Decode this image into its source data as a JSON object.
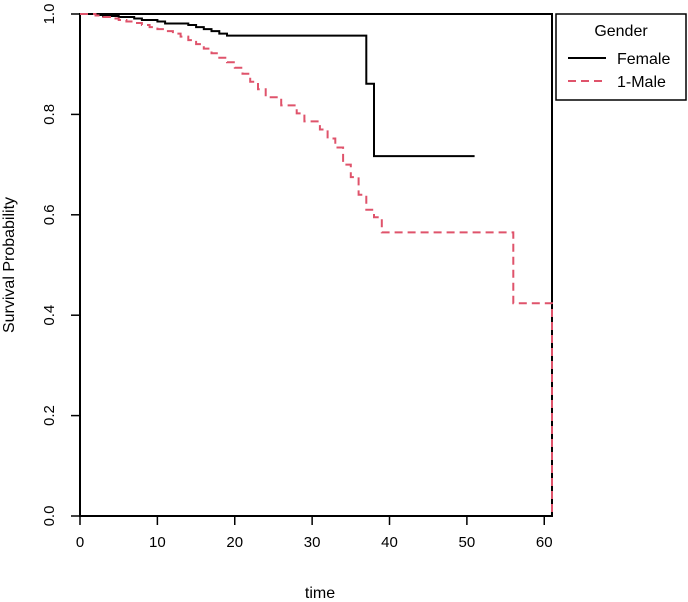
{
  "chart_data": {
    "type": "line",
    "subtype": "kaplan-meier step",
    "title": "",
    "xlabel": "time",
    "ylabel": "Survival Probability",
    "xlim": [
      0,
      61
    ],
    "ylim": [
      0,
      1
    ],
    "x_ticks": [
      "0",
      "10",
      "20",
      "30",
      "40",
      "50",
      "60"
    ],
    "y_ticks": [
      "0.0",
      "0.2",
      "0.4",
      "0.6",
      "0.8",
      "1.0"
    ],
    "grid": false,
    "legend": {
      "title": "Gender",
      "placement": "top-right outside",
      "entries": [
        "Female",
        "1-Male"
      ]
    },
    "series": [
      {
        "name": "Female",
        "color": "#000000",
        "style": "solid",
        "x": [
          0,
          2,
          3,
          5,
          7,
          8,
          10,
          11,
          14,
          15,
          16,
          17,
          18,
          19,
          37,
          38,
          51
        ],
        "y": [
          1.0,
          0.998,
          0.996,
          0.994,
          0.991,
          0.988,
          0.985,
          0.981,
          0.978,
          0.974,
          0.97,
          0.966,
          0.961,
          0.957,
          0.861,
          0.717,
          0.717
        ]
      },
      {
        "name": "1-Male",
        "color": "#DF536B",
        "style": "dashed",
        "x": [
          0,
          2,
          3,
          4,
          5,
          6,
          7,
          8,
          9,
          10,
          11,
          12,
          13,
          14,
          15,
          16,
          17,
          18,
          19,
          20,
          21,
          22,
          23,
          24,
          26,
          28,
          29,
          31,
          32,
          33,
          34,
          35,
          36,
          37,
          38,
          39,
          56,
          61
        ],
        "y": [
          1.0,
          0.997,
          0.994,
          0.991,
          0.988,
          0.985,
          0.982,
          0.978,
          0.974,
          0.97,
          0.966,
          0.961,
          0.955,
          0.948,
          0.94,
          0.931,
          0.922,
          0.913,
          0.904,
          0.893,
          0.881,
          0.865,
          0.85,
          0.834,
          0.818,
          0.802,
          0.786,
          0.77,
          0.752,
          0.734,
          0.7,
          0.675,
          0.64,
          0.61,
          0.595,
          0.565,
          0.424,
          0.0
        ]
      }
    ]
  }
}
